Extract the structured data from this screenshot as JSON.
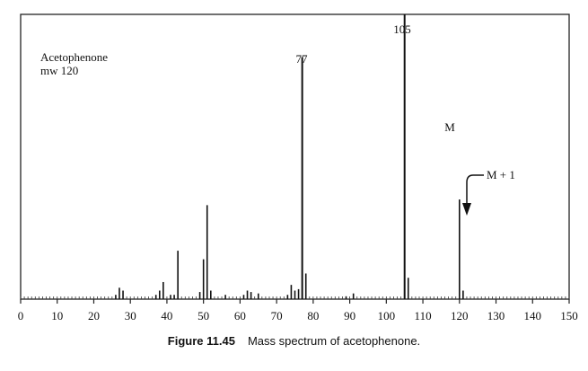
{
  "chart_data": {
    "type": "bar",
    "title": "",
    "xlabel": "",
    "ylabel": "",
    "xlim": [
      0,
      150
    ],
    "ylim": [
      0,
      100
    ],
    "xticks": [
      0,
      10,
      20,
      30,
      40,
      50,
      60,
      70,
      80,
      90,
      100,
      110,
      120,
      130,
      140,
      150
    ],
    "x": [
      26,
      27,
      28,
      37,
      38,
      39,
      41,
      42,
      43,
      49,
      50,
      51,
      52,
      56,
      61,
      62,
      63,
      65,
      73,
      74,
      75,
      76,
      77,
      78,
      89,
      91,
      105,
      106,
      120,
      121
    ],
    "values": [
      1.5,
      4,
      3,
      1.5,
      3,
      6,
      1.5,
      1.5,
      17,
      2.5,
      14,
      33,
      3,
      1.5,
      1.5,
      3,
      2.5,
      2,
      1.5,
      5,
      3,
      3.5,
      85,
      9,
      1,
      2,
      100,
      7.5,
      35,
      3
    ],
    "annotations": {
      "compound_name": "Acetophenone",
      "molecular_weight": "mw 120",
      "peak_77": "77",
      "peak_105": "105",
      "molecular_ion": "M",
      "isotope_peak": "M + 1"
    }
  },
  "caption": {
    "figure_number": "Figure 11.45",
    "text": "Mass spectrum of acetophenone."
  }
}
